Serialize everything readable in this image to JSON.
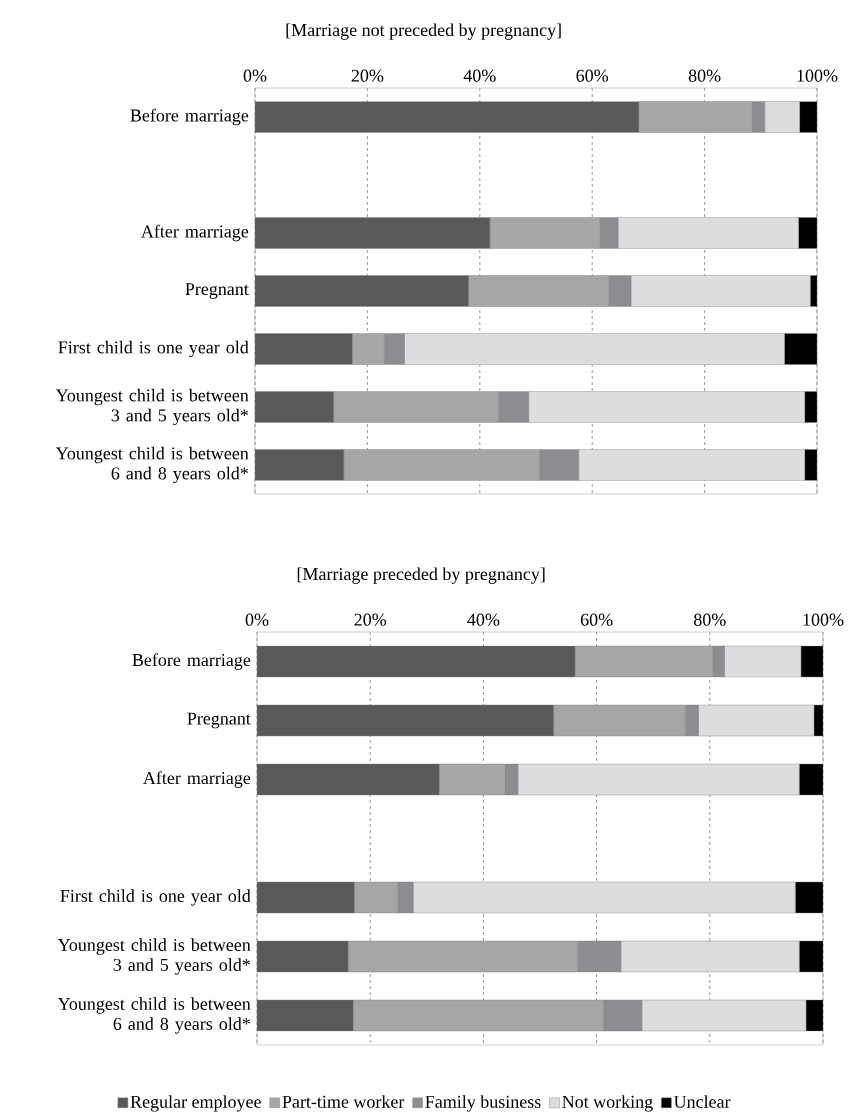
{
  "chart_data": [
    {
      "type": "bar",
      "title": "[Marriage not preceded by pregnancy]",
      "orientation": "horizontal",
      "stacked": true,
      "grid": "x",
      "categories": [
        "Before marriage",
        null,
        "After marriage",
        "Pregnant",
        "First child is one year old",
        "Youngest child is between 3 and 5 years old*",
        "Youngest child is between 6 and 8 years old*"
      ],
      "xlim": [
        0,
        100
      ],
      "xticks": [
        {
          "value": 0,
          "label": "0%"
        },
        {
          "value": 20,
          "label": "20%"
        },
        {
          "value": 40,
          "label": "40%"
        },
        {
          "value": 60,
          "label": "60%"
        },
        {
          "value": 80,
          "label": "80%"
        },
        {
          "value": 100,
          "label": "100%"
        }
      ],
      "series": [
        {
          "color": "#58595b",
          "values": [
            68.3,
            null,
            41.8,
            38.0,
            17.3,
            14.0,
            15.8
          ]
        },
        {
          "color": "#a6a6a6",
          "values": [
            20.1,
            null,
            19.6,
            25.0,
            5.7,
            29.3,
            34.8
          ]
        },
        {
          "color": "#8c8d90",
          "values": [
            2.3,
            null,
            3.2,
            3.9,
            3.6,
            5.4,
            7.0
          ]
        },
        {
          "color": "#dcdddf",
          "values": [
            6.2,
            null,
            32.1,
            31.9,
            67.6,
            49.1,
            40.2
          ]
        },
        {
          "color": "#000000",
          "values": [
            3.1,
            null,
            3.3,
            1.2,
            5.8,
            2.2,
            2.2
          ]
        }
      ]
    },
    {
      "type": "bar",
      "title": "[Marriage preceded by pregnancy]",
      "orientation": "horizontal",
      "stacked": true,
      "grid": "x",
      "legend": "bottom",
      "categories": [
        "Before marriage",
        "Pregnant",
        "After marriage",
        null,
        "First child is one year old",
        "Youngest child is between 3 and 5 years old*",
        "Youngest child is between 6 and 8 years old*"
      ],
      "xlim": [
        0,
        100
      ],
      "xticks": [
        {
          "value": 0,
          "label": "0%"
        },
        {
          "value": 20,
          "label": "20%"
        },
        {
          "value": 40,
          "label": "40%"
        },
        {
          "value": 60,
          "label": "60%"
        },
        {
          "value": 80,
          "label": "80%"
        },
        {
          "value": 100,
          "label": "100%"
        }
      ],
      "series": [
        {
          "name": "Regular employee",
          "color": "#58595b",
          "values": [
            56.2,
            52.4,
            32.2,
            null,
            17.2,
            16.1,
            17.0
          ]
        },
        {
          "name": "Part-time worker",
          "color": "#a6a6a6",
          "values": [
            24.3,
            23.3,
            11.6,
            null,
            7.7,
            40.5,
            44.2
          ]
        },
        {
          "name": "Family business",
          "color": "#8c8d90",
          "values": [
            2.1,
            2.3,
            2.3,
            null,
            2.7,
            7.7,
            6.8
          ]
        },
        {
          "name": "Not working",
          "color": "#dcdddf",
          "values": [
            13.5,
            20.4,
            49.7,
            null,
            67.5,
            31.5,
            29.0
          ]
        },
        {
          "name": "Unclear",
          "color": "#000000",
          "values": [
            3.9,
            1.6,
            4.2,
            null,
            4.9,
            4.2,
            3.0
          ]
        }
      ]
    }
  ]
}
